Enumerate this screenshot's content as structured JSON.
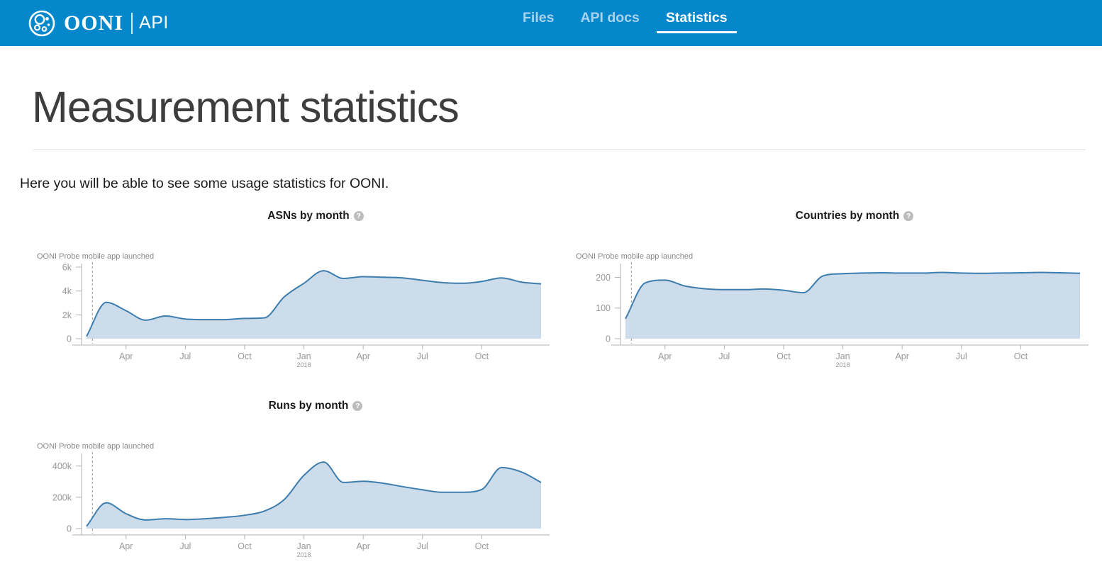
{
  "header": {
    "brand": {
      "name": "OONI",
      "suffix": "API"
    },
    "nav": [
      {
        "label": "Files",
        "active": false
      },
      {
        "label": "API docs",
        "active": false
      },
      {
        "label": "Statistics",
        "active": true
      }
    ]
  },
  "page": {
    "title": "Measurement statistics",
    "intro": "Here you will be able to see some usage statistics for OONI."
  },
  "icons": {
    "help_glyph": "?"
  },
  "colors": {
    "header_bg": "#0588CB",
    "nav_active": "#ffffff",
    "nav_inactive": "#a8d3ec",
    "chart_line": "#3d7dae",
    "chart_fill": "#ccdcea",
    "axis": "#b3b3b3",
    "tick_label": "#999999",
    "annotation_text": "#888888",
    "annotation_line": "#a6a6a6"
  },
  "chart_data": [
    {
      "type": "area",
      "title": "ASNs by month",
      "annotation": "OONI Probe mobile app launched",
      "annotation_month_index": 0.3,
      "x": [
        "2017-02",
        "2017-03",
        "2017-04",
        "2017-05",
        "2017-06",
        "2017-07",
        "2017-08",
        "2017-09",
        "2017-10",
        "2017-11",
        "2017-12",
        "2018-01",
        "2018-02",
        "2018-03",
        "2018-04",
        "2018-05",
        "2018-06",
        "2018-07",
        "2018-08",
        "2018-09",
        "2018-10",
        "2018-11",
        "2018-12",
        "2019-01"
      ],
      "values": [
        200,
        3050,
        2350,
        1550,
        1900,
        1650,
        1600,
        1600,
        1700,
        1750,
        3500,
        4650,
        5700,
        5050,
        5200,
        5150,
        5100,
        4900,
        4700,
        4650,
        4800,
        5100,
        4750,
        4600
      ],
      "ylim": [
        0,
        6300
      ],
      "yticks": [
        {
          "label": "0",
          "value": 0
        },
        {
          "label": "2k",
          "value": 2000
        },
        {
          "label": "4k",
          "value": 4000
        },
        {
          "label": "6k",
          "value": 6000
        }
      ],
      "xticks": [
        {
          "i": 2,
          "label": "Apr"
        },
        {
          "i": 5,
          "label": "Jul"
        },
        {
          "i": 8,
          "label": "Oct"
        },
        {
          "i": 11,
          "label": "Jan",
          "year": "2018"
        },
        {
          "i": 14,
          "label": "Apr"
        },
        {
          "i": 17,
          "label": "Jul"
        },
        {
          "i": 20,
          "label": "Oct"
        }
      ],
      "legend_position": "none",
      "grid": false
    },
    {
      "type": "area",
      "title": "Countries by month",
      "annotation": "OONI Probe mobile app launched",
      "annotation_month_index": 0.3,
      "x": [
        "2017-02",
        "2017-03",
        "2017-04",
        "2017-05",
        "2017-06",
        "2017-07",
        "2017-08",
        "2017-09",
        "2017-10",
        "2017-11",
        "2017-12",
        "2018-01",
        "2018-02",
        "2018-03",
        "2018-04",
        "2018-05",
        "2018-06",
        "2018-07",
        "2018-08",
        "2018-09",
        "2018-10",
        "2018-11",
        "2018-12",
        "2019-01"
      ],
      "values": [
        65,
        182,
        191,
        172,
        163,
        160,
        160,
        162,
        158,
        150,
        205,
        212,
        214,
        215,
        214,
        214,
        216,
        214,
        213,
        214,
        215,
        216,
        215,
        213
      ],
      "ylim": [
        0,
        245
      ],
      "yticks": [
        {
          "label": "0",
          "value": 0
        },
        {
          "label": "100",
          "value": 100
        },
        {
          "label": "200",
          "value": 200
        }
      ],
      "xticks": [
        {
          "i": 2,
          "label": "Apr"
        },
        {
          "i": 5,
          "label": "Jul"
        },
        {
          "i": 8,
          "label": "Oct"
        },
        {
          "i": 11,
          "label": "Jan",
          "year": "2018"
        },
        {
          "i": 14,
          "label": "Apr"
        },
        {
          "i": 17,
          "label": "Jul"
        },
        {
          "i": 20,
          "label": "Oct"
        }
      ],
      "legend_position": "none",
      "grid": false
    },
    {
      "type": "area",
      "title": "Runs by month",
      "annotation": "OONI Probe mobile app launched",
      "annotation_month_index": 0.3,
      "x": [
        "2017-02",
        "2017-03",
        "2017-04",
        "2017-05",
        "2017-06",
        "2017-07",
        "2017-08",
        "2017-09",
        "2017-10",
        "2017-11",
        "2017-12",
        "2018-01",
        "2018-02",
        "2018-03",
        "2018-04",
        "2018-05",
        "2018-06",
        "2018-07",
        "2018-08",
        "2018-09",
        "2018-10",
        "2018-11",
        "2018-12",
        "2019-01"
      ],
      "values": [
        15000,
        165000,
        95000,
        55000,
        63000,
        58000,
        63000,
        72000,
        85000,
        112000,
        185000,
        340000,
        425000,
        295000,
        302000,
        290000,
        268000,
        248000,
        232000,
        232000,
        250000,
        390000,
        362000,
        295000
      ],
      "ylim": [
        0,
        480000
      ],
      "yticks": [
        {
          "label": "0",
          "value": 0
        },
        {
          "label": "200k",
          "value": 200000
        },
        {
          "label": "400k",
          "value": 400000
        }
      ],
      "xticks": [
        {
          "i": 2,
          "label": "Apr"
        },
        {
          "i": 5,
          "label": "Jul"
        },
        {
          "i": 8,
          "label": "Oct"
        },
        {
          "i": 11,
          "label": "Jan",
          "year": "2018"
        },
        {
          "i": 14,
          "label": "Apr"
        },
        {
          "i": 17,
          "label": "Jul"
        },
        {
          "i": 20,
          "label": "Oct"
        }
      ],
      "legend_position": "none",
      "grid": false
    }
  ]
}
